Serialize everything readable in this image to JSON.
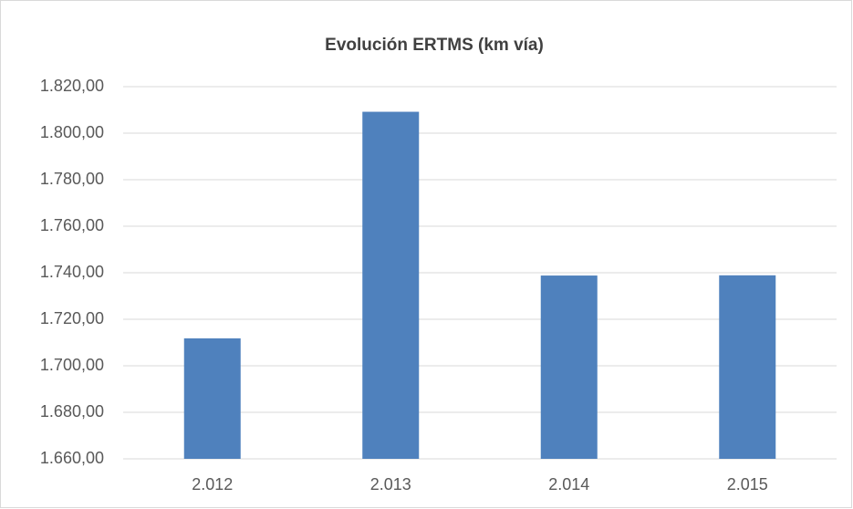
{
  "chart_data": {
    "type": "bar",
    "title": "Evolución ERTMS (km vía)",
    "categories": [
      "2.012",
      "2.013",
      "2.014",
      "2.015"
    ],
    "values": [
      1711.8,
      1809.2,
      1738.8,
      1738.9
    ],
    "color": "#4f81bd",
    "ylim": [
      1660,
      1820
    ],
    "yticks": [
      {
        "value": 1660,
        "label": "1.660,00"
      },
      {
        "value": 1680,
        "label": "1.680,00"
      },
      {
        "value": 1700,
        "label": "1.700,00"
      },
      {
        "value": 1720,
        "label": "1.720,00"
      },
      {
        "value": 1740,
        "label": "1.740,00"
      },
      {
        "value": 1760,
        "label": "1.760,00"
      },
      {
        "value": 1780,
        "label": "1.780,00"
      },
      {
        "value": 1800,
        "label": "1.800,00"
      },
      {
        "value": 1820,
        "label": "1.820,00"
      }
    ],
    "grid": true
  }
}
